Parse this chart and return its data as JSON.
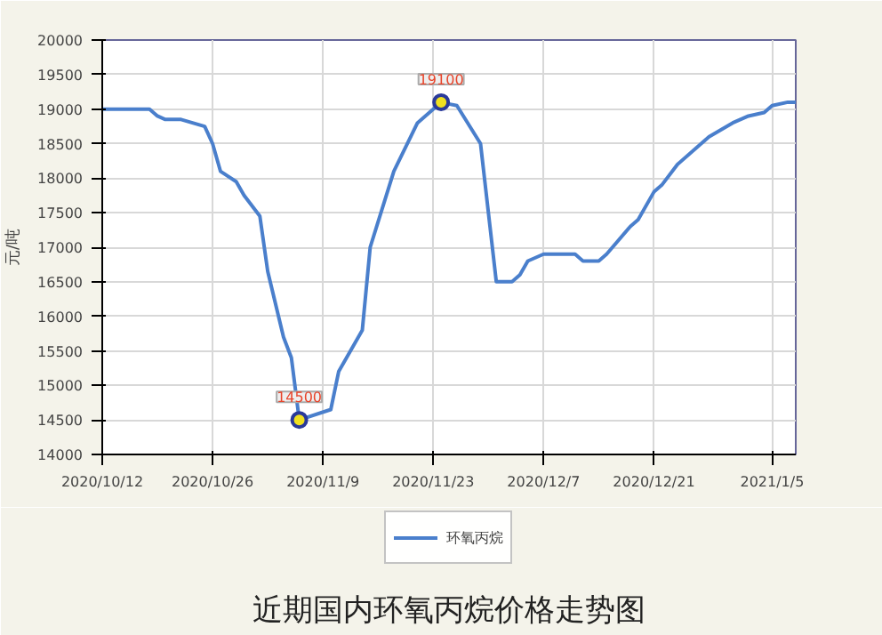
{
  "chart_data": {
    "type": "line",
    "title": "近期国内环氧丙烷价格走势图",
    "ylabel": "元/吨",
    "x": [
      "2020-10-12",
      "2020-10-18",
      "2020-10-19",
      "2020-10-20",
      "2020-10-22",
      "2020-10-25",
      "2020-10-26",
      "2020-10-27",
      "2020-10-29",
      "2020-10-30",
      "2020-11-01",
      "2020-11-02",
      "2020-11-04",
      "2020-11-05",
      "2020-11-06",
      "2020-11-10",
      "2020-11-11",
      "2020-11-12",
      "2020-11-14",
      "2020-11-15",
      "2020-11-18",
      "2020-11-21",
      "2020-11-24",
      "2020-11-26",
      "2020-11-29",
      "2020-12-01",
      "2020-12-03",
      "2020-12-04",
      "2020-12-05",
      "2020-12-07",
      "2020-12-11",
      "2020-12-12",
      "2020-12-14",
      "2020-12-15",
      "2020-12-18",
      "2020-12-19",
      "2020-12-21",
      "2020-12-22",
      "2020-12-24",
      "2020-12-26",
      "2020-12-28",
      "2020-12-31",
      "2021-01-02",
      "2021-01-04",
      "2021-01-05",
      "2021-01-07",
      "2021-01-08"
    ],
    "series": [
      {
        "name": "环氧丙烷",
        "color": "#4a7fcc",
        "values": [
          19000,
          19000,
          18900,
          18850,
          18850,
          18750,
          18500,
          18100,
          17950,
          17750,
          17450,
          16650,
          15700,
          15400,
          14500,
          14650,
          15200,
          15400,
          15800,
          17000,
          18100,
          18800,
          19100,
          19050,
          18500,
          16500,
          16500,
          16600,
          16800,
          16900,
          16900,
          16800,
          16800,
          16900,
          17300,
          17400,
          17800,
          17900,
          18200,
          18400,
          18600,
          18800,
          18900,
          18950,
          19050,
          19100,
          19100
        ]
      }
    ],
    "xlim": [
      "2020-10-12",
      "2021-01-08"
    ],
    "xticks": [
      {
        "value": "2020-10-12",
        "label": "2020/10/12"
      },
      {
        "value": "2020-10-26",
        "label": "2020/10/26"
      },
      {
        "value": "2020-11-09",
        "label": "2020/11/9"
      },
      {
        "value": "2020-11-23",
        "label": "2020/11/23"
      },
      {
        "value": "2020-12-07",
        "label": "2020/12/7"
      },
      {
        "value": "2020-12-21",
        "label": "2020/12/21"
      },
      {
        "value": "2021-01-05",
        "label": "2021/1/5"
      }
    ],
    "ylim": [
      14000,
      20000
    ],
    "yticks": [
      14000,
      14500,
      15000,
      15500,
      16000,
      16500,
      17000,
      17500,
      18000,
      18500,
      19000,
      19500,
      20000
    ],
    "annotations": [
      {
        "text": "14500",
        "x": "2020-11-06",
        "y": 14500
      },
      {
        "text": "19100",
        "x": "2020-11-24",
        "y": 19100
      }
    ],
    "grid": true,
    "legend": "bottom",
    "marker": "none",
    "line_style": "solid"
  }
}
